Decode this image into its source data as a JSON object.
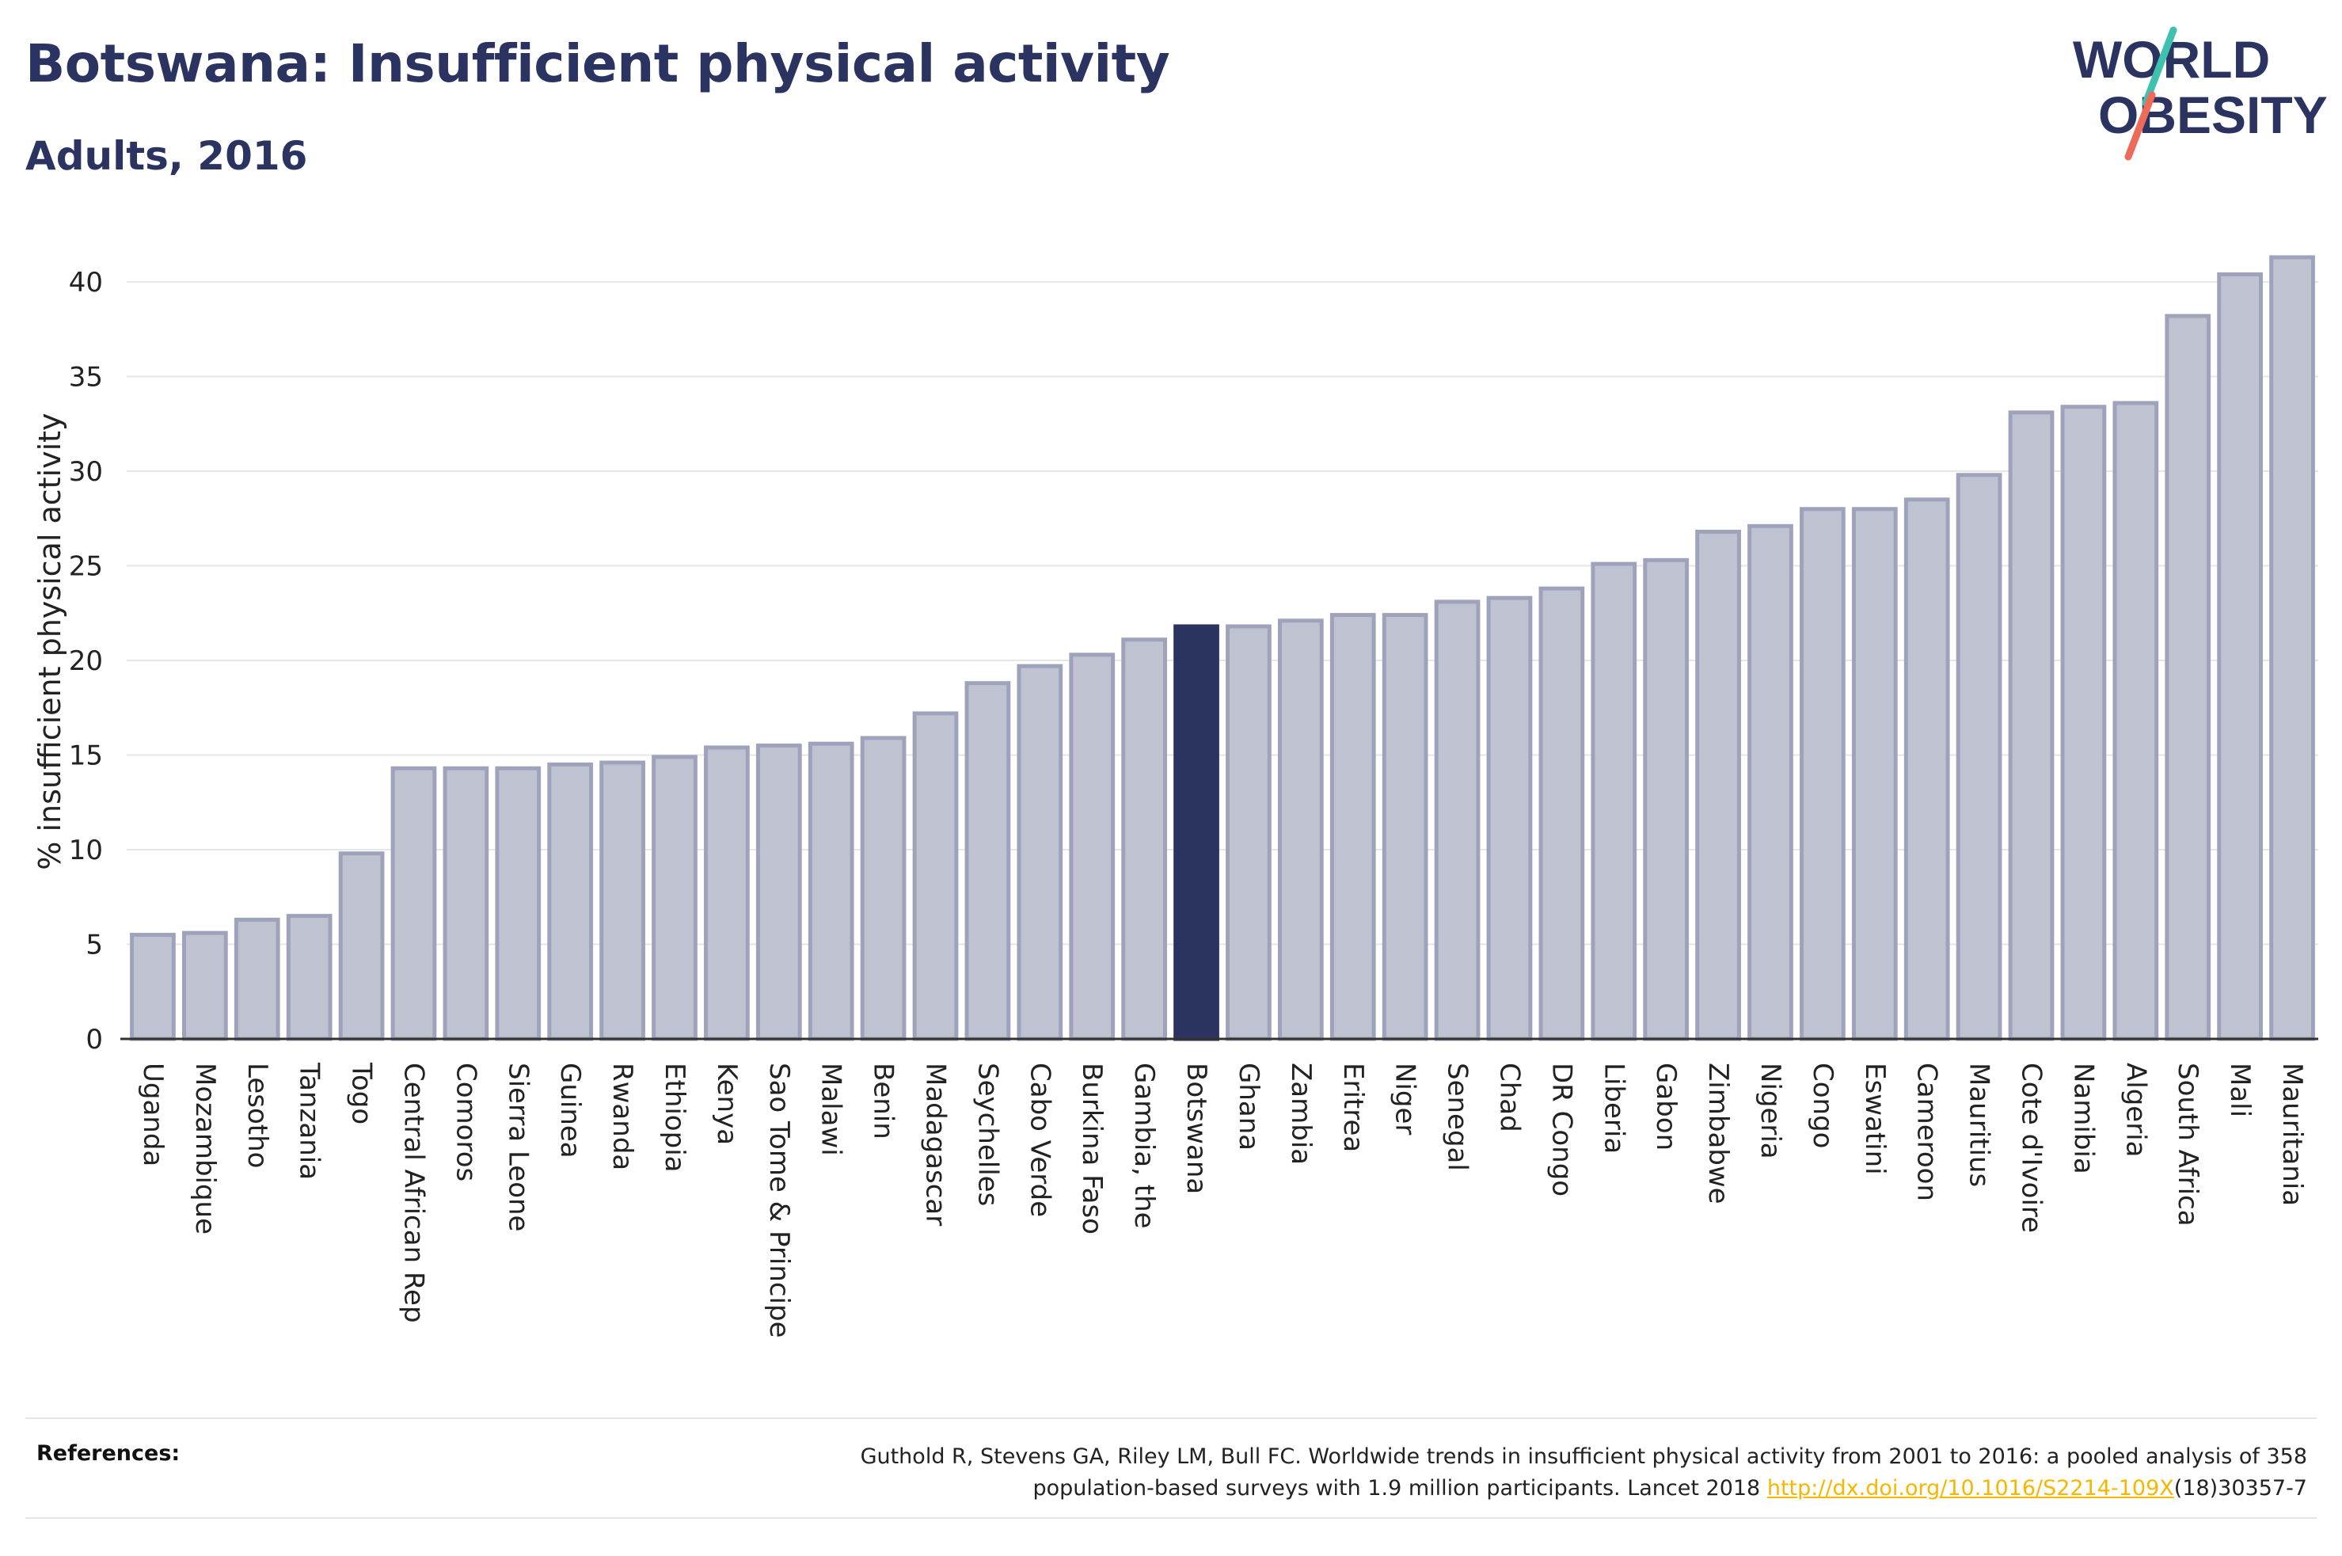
{
  "header": {
    "title": "Botswana: Insufficient physical activity",
    "subtitle": "Adults, 2016"
  },
  "logo": {
    "line1": "WORLD",
    "line2": "OBESITY",
    "text_color": "#2b3461",
    "stroke_teal": "#3fc1b0",
    "stroke_coral": "#ee6a59"
  },
  "colors": {
    "bar_fill": "#bfc3d1",
    "bar_stroke": "#9ea3bb",
    "highlight": "#2b3461",
    "grid": "#e6e6e6",
    "axis": "#333333"
  },
  "chart_data": {
    "type": "bar",
    "title": "Botswana: Insufficient physical activity",
    "subtitle": "Adults, 2016",
    "xlabel": "",
    "ylabel": "% insufficient physical activity",
    "ylim": [
      0,
      42
    ],
    "yticks": [
      0,
      5,
      10,
      15,
      20,
      25,
      30,
      35,
      40
    ],
    "grid": true,
    "highlight": "Botswana",
    "categories": [
      "Uganda",
      "Mozambique",
      "Lesotho",
      "Tanzania",
      "Togo",
      "Central African Rep",
      "Comoros",
      "Sierra Leone",
      "Guinea",
      "Rwanda",
      "Ethiopia",
      "Kenya",
      "Sao Tome & Principe",
      "Malawi",
      "Benin",
      "Madagascar",
      "Seychelles",
      "Cabo Verde",
      "Burkina Faso",
      "Gambia, the",
      "Botswana",
      "Ghana",
      "Zambia",
      "Eritrea",
      "Niger",
      "Senegal",
      "Chad",
      "DR Congo",
      "Liberia",
      "Gabon",
      "Zimbabwe",
      "Nigeria",
      "Congo",
      "Eswatini",
      "Cameroon",
      "Mauritius",
      "Cote d'Ivoire",
      "Namibia",
      "Algeria",
      "South Africa",
      "Mali",
      "Mauritania"
    ],
    "values": [
      5.5,
      5.6,
      6.3,
      6.5,
      9.8,
      14.3,
      14.3,
      14.3,
      14.5,
      14.6,
      14.9,
      15.4,
      15.5,
      15.6,
      15.9,
      17.2,
      18.8,
      19.7,
      20.3,
      21.1,
      21.8,
      21.8,
      22.1,
      22.4,
      22.4,
      23.1,
      23.3,
      23.8,
      25.1,
      25.3,
      26.8,
      27.1,
      28.0,
      28.0,
      28.5,
      29.8,
      33.1,
      33.4,
      33.6,
      38.2,
      40.4,
      41.3
    ]
  },
  "references": {
    "label": "References:",
    "text_line1": "Guthold R, Stevens GA, Riley LM, Bull FC. Worldwide trends in insufficient physical activity from 2001 to 2016: a pooled analysis of 358",
    "text_line2_prefix": "population-based surveys with 1.9 million participants. Lancet 2018 ",
    "link_text": "http://dx.doi.org/10.1016/S2214-109X",
    "text_line2_suffix": "(18)30357-7"
  }
}
